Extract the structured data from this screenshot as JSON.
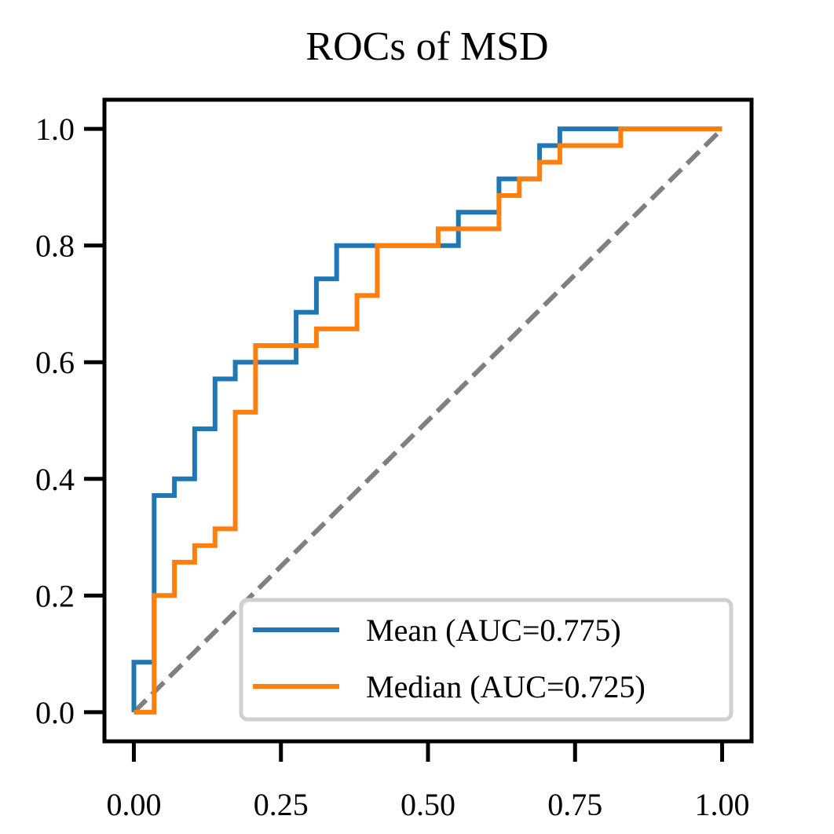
{
  "chart_data": {
    "type": "line",
    "title": "ROCs of MSD",
    "xlabel": "",
    "ylabel": "",
    "xlim": [
      -0.05,
      1.05
    ],
    "ylim": [
      -0.05,
      1.05
    ],
    "x_ticks": [
      "0.00",
      "0.25",
      "0.50",
      "0.75",
      "1.00"
    ],
    "x_tick_values": [
      0,
      0.25,
      0.5,
      0.75,
      1.0
    ],
    "y_ticks": [
      "0.0",
      "0.2",
      "0.4",
      "0.6",
      "0.8",
      "1.0"
    ],
    "y_tick_values": [
      0,
      0.2,
      0.4,
      0.6,
      0.8,
      1.0
    ],
    "grid": false,
    "legend_position": "lower-right",
    "series": [
      {
        "name": "Mean (AUC=0.775)",
        "color": "#1f77b4",
        "x": [
          0,
          0,
          0.0345,
          0.0345,
          0.069,
          0.069,
          0.1034,
          0.1034,
          0.1379,
          0.1379,
          0.1724,
          0.1724,
          0.2759,
          0.2759,
          0.3103,
          0.3103,
          0.3448,
          0.3448,
          0.5517,
          0.5517,
          0.6207,
          0.6207,
          0.6897,
          0.6897,
          0.7241,
          0.7241,
          1.0
        ],
        "y": [
          0,
          0.0857,
          0.0857,
          0.3714,
          0.3714,
          0.4,
          0.4,
          0.4857,
          0.4857,
          0.5714,
          0.5714,
          0.6,
          0.6,
          0.6857,
          0.6857,
          0.7429,
          0.7429,
          0.8,
          0.8,
          0.8571,
          0.8571,
          0.9143,
          0.9143,
          0.9714,
          0.9714,
          1.0,
          1.0
        ]
      },
      {
        "name": "Median (AUC=0.725)",
        "color": "#ff7f0e",
        "x": [
          0,
          0.0345,
          0.0345,
          0.069,
          0.069,
          0.1034,
          0.1034,
          0.1379,
          0.1379,
          0.1724,
          0.1724,
          0.2069,
          0.2069,
          0.3103,
          0.3103,
          0.3793,
          0.3793,
          0.4138,
          0.4138,
          0.5172,
          0.5172,
          0.6207,
          0.6207,
          0.6552,
          0.6552,
          0.6897,
          0.6897,
          0.7241,
          0.7241,
          0.8276,
          0.8276,
          1.0
        ],
        "y": [
          0,
          0,
          0.2,
          0.2,
          0.2571,
          0.2571,
          0.2857,
          0.2857,
          0.3143,
          0.3143,
          0.5143,
          0.5143,
          0.6286,
          0.6286,
          0.6571,
          0.6571,
          0.7143,
          0.7143,
          0.8,
          0.8,
          0.8286,
          0.8286,
          0.8857,
          0.8857,
          0.9143,
          0.9143,
          0.9429,
          0.9429,
          0.9714,
          0.9714,
          1.0,
          1.0
        ]
      }
    ],
    "reference_line": {
      "x": [
        0,
        1
      ],
      "y": [
        0,
        1
      ],
      "color": "#808080",
      "style": "dashed"
    }
  }
}
